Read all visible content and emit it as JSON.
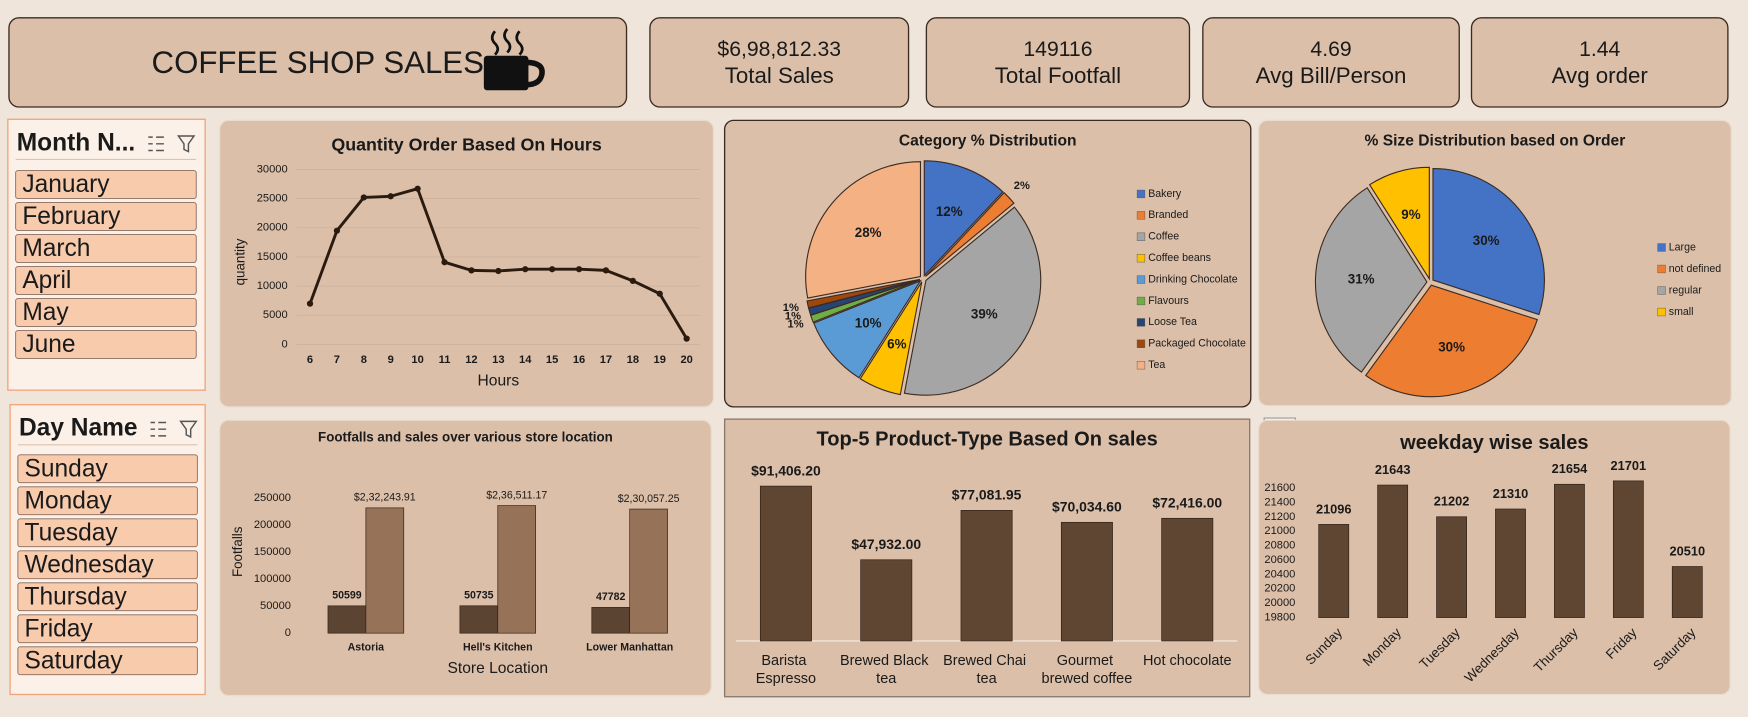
{
  "header": {
    "title": "COFFEE SHOP SALES"
  },
  "kpis": [
    {
      "value": "$6,98,812.33",
      "label": "Total Sales"
    },
    {
      "value": "149116",
      "label": "Total Footfall"
    },
    {
      "value": "4.69",
      "label": "Avg Bill/Person"
    },
    {
      "value": "1.44",
      "label": "Avg order"
    }
  ],
  "slicers": [
    {
      "title": "Month N...",
      "items": [
        "January",
        "February",
        "March",
        "April",
        "May",
        "June"
      ]
    },
    {
      "title": "Day Name",
      "items": [
        "Sunday",
        "Monday",
        "Tuesday",
        "Wednesday",
        "Thursday",
        "Friday",
        "Saturday"
      ]
    }
  ],
  "chart_data": [
    {
      "type": "line",
      "title": "Quantity Order Based On Hours",
      "xlabel": "Hours",
      "ylabel": "quantity",
      "categories": [
        "6",
        "7",
        "8",
        "9",
        "10",
        "11",
        "12",
        "13",
        "14",
        "15",
        "16",
        "17",
        "18",
        "19",
        "20"
      ],
      "values": [
        7000,
        19500,
        25200,
        25400,
        26700,
        14100,
        12700,
        12600,
        12900,
        12900,
        12900,
        12700,
        10900,
        8700,
        1000
      ],
      "color": "#2b1a0e",
      "ylim": [
        0,
        30000
      ],
      "yticks": [
        0,
        5000,
        10000,
        15000,
        20000,
        25000,
        30000
      ],
      "grid": true
    },
    {
      "type": "pie",
      "title": "Category % Distribution",
      "categories": [
        "Bakery",
        "Branded",
        "Coffee",
        "Coffee beans",
        "Drinking Chocolate",
        "Flavours",
        "Loose Tea",
        "Packaged Chocolate",
        "Tea"
      ],
      "values": [
        12,
        2,
        39,
        6,
        10,
        1,
        1,
        1,
        28
      ],
      "value_labels": [
        "12%",
        "2%",
        "39%",
        "6%",
        "10%",
        "1%",
        "1%",
        "1%",
        "28%"
      ],
      "colors": [
        "#4472c4",
        "#ed7d31",
        "#a5a5a5",
        "#ffc000",
        "#5b9bd5",
        "#70ad47",
        "#264478",
        "#9e480e",
        "#f4b183"
      ],
      "legend": "right"
    },
    {
      "type": "pie",
      "title": "% Size Distribution based on Order",
      "categories": [
        "Large",
        "not defined",
        "regular",
        "small"
      ],
      "values": [
        30,
        30,
        31,
        9
      ],
      "value_labels": [
        "30%",
        "30%",
        "31%",
        "9%"
      ],
      "colors": [
        "#4472c4",
        "#ed7d31",
        "#a5a5a5",
        "#ffc000"
      ],
      "legend": "right"
    },
    {
      "type": "bar",
      "title": "Footfalls and sales over various store location",
      "xlabel": "Store Location",
      "ylabel": "Footfalls",
      "categories": [
        "Astoria",
        "Hell's Kitchen",
        "Lower Manhattan"
      ],
      "series": [
        {
          "color": "#5c4433",
          "values": [
            50599,
            50735,
            47782
          ]
        },
        {
          "color": "#967259",
          "values": [
            232243.91,
            236511.17,
            230057.25
          ],
          "value_labels": [
            "$2,32,243.91",
            "$2,36,511.17",
            "$2,30,057.25"
          ]
        }
      ],
      "ylim": [
        0,
        250000
      ],
      "yticks": [
        0,
        50000,
        100000,
        150000,
        200000,
        250000
      ]
    },
    {
      "type": "bar",
      "title": "Top-5 Product-Type Based On sales",
      "categories": [
        "Barista Espresso",
        "Brewed Black tea",
        "Brewed Chai tea",
        "Gourmet brewed coffee",
        "Hot chocolate"
      ],
      "values": [
        91406.2,
        47932.0,
        77081.95,
        70034.6,
        72416.0
      ],
      "value_labels": [
        "$91,406.20",
        "$47,932.00",
        "$77,081.95",
        "$70,034.60",
        "$72,416.00"
      ],
      "color": "#5e4632",
      "ylim": [
        0,
        100000
      ]
    },
    {
      "type": "bar",
      "title": "weekday wise sales",
      "categories": [
        "Sunday",
        "Monday",
        "Tuesday",
        "Wednesday",
        "Thursday",
        "Friday",
        "Saturday"
      ],
      "values": [
        21096,
        21643,
        21202,
        21310,
        21654,
        21701,
        20510
      ],
      "color": "#5e4632",
      "ylim": [
        19800,
        21800
      ],
      "yticks": [
        19800,
        20000,
        20200,
        20400,
        20600,
        20800,
        21000,
        21200,
        21400,
        21600
      ]
    }
  ]
}
